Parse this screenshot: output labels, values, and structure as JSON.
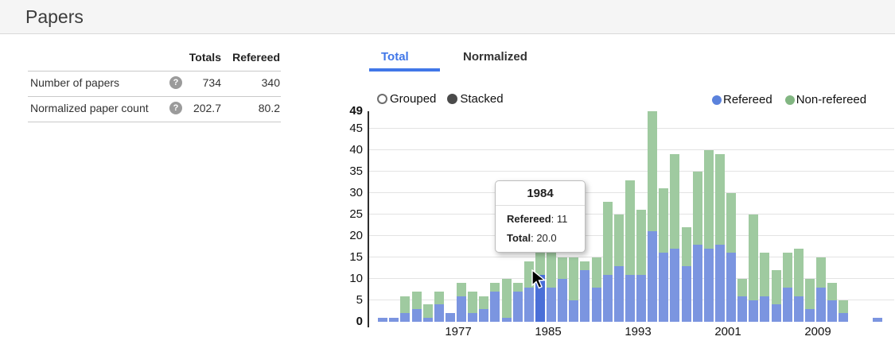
{
  "page": {
    "title": "Papers"
  },
  "table": {
    "headers": {
      "totals": "Totals",
      "refereed": "Refereed"
    },
    "rows": [
      {
        "label": "Number of papers",
        "help_icon": "?",
        "totals": "734",
        "refereed": "340"
      },
      {
        "label": "Normalized paper count",
        "help_icon": "?",
        "totals": "202.7",
        "refereed": "80.2"
      }
    ]
  },
  "tabs": {
    "total": "Total",
    "normalized": "Normalized",
    "active": "Total"
  },
  "controls": {
    "grouped": "Grouped",
    "stacked": "Stacked",
    "selected": "Stacked"
  },
  "legend": {
    "refereed": "Refereed",
    "non_refereed": "Non-refereed",
    "refereed_color": "#5b82dc",
    "non_refereed_color": "#82b682"
  },
  "tooltip": {
    "title": "1984",
    "row1_label": "Refereed",
    "row1_value": "11",
    "row2_label": "Total",
    "row2_value": "20.0"
  },
  "chart_data": {
    "type": "bar",
    "stacked": true,
    "x": [
      1970,
      1971,
      1972,
      1973,
      1974,
      1975,
      1976,
      1977,
      1978,
      1979,
      1980,
      1981,
      1982,
      1983,
      1984,
      1985,
      1986,
      1987,
      1988,
      1989,
      1990,
      1991,
      1992,
      1993,
      1994,
      1995,
      1996,
      1997,
      1998,
      1999,
      2000,
      2001,
      2002,
      2003,
      2004,
      2005,
      2006,
      2007,
      2008,
      2009,
      2010,
      2011,
      2012,
      2013,
      2014
    ],
    "series": [
      {
        "name": "Refereed",
        "values": [
          1,
          1,
          2,
          3,
          1,
          4,
          2,
          6,
          2,
          3,
          7,
          1,
          7,
          8,
          11,
          8,
          10,
          5,
          12,
          8,
          11,
          13,
          11,
          11,
          21,
          16,
          17,
          13,
          18,
          17,
          18,
          16,
          6,
          5,
          6,
          4,
          8,
          6,
          3,
          8,
          5,
          2,
          0,
          0,
          1
        ]
      },
      {
        "name": "Non-refereed",
        "values": [
          0,
          0,
          4,
          4,
          3,
          3,
          0,
          3,
          5,
          3,
          2,
          9,
          2,
          6,
          9,
          8,
          5,
          10,
          2,
          7,
          17,
          12,
          22,
          15,
          28,
          15,
          22,
          9,
          17,
          23,
          21,
          14,
          4,
          20,
          10,
          8,
          8,
          11,
          7,
          7,
          4,
          3,
          0,
          0,
          0
        ]
      }
    ],
    "totals": [
      1,
      1,
      6,
      7,
      4,
      7,
      2,
      9,
      7,
      6,
      9,
      10,
      9,
      14,
      20,
      16,
      15,
      15,
      14,
      15,
      28,
      25,
      33,
      26,
      49,
      31,
      39,
      22,
      35,
      40,
      39,
      30,
      10,
      25,
      16,
      12,
      16,
      17,
      10,
      15,
      9,
      5,
      0,
      0,
      1
    ],
    "ylim": [
      0,
      49
    ],
    "yticks": [
      0,
      5,
      10,
      15,
      20,
      25,
      30,
      35,
      40,
      45,
      49
    ],
    "xticks": [
      1977,
      1985,
      1993,
      2001,
      2009
    ],
    "highlighted_x": 1984,
    "bar_color_refereed": "#7b95e0",
    "bar_color_non_refereed": "#9fcaa0",
    "bar_color_highlight": "#4a6fd8",
    "grid": true,
    "legend_position": "top-right"
  }
}
